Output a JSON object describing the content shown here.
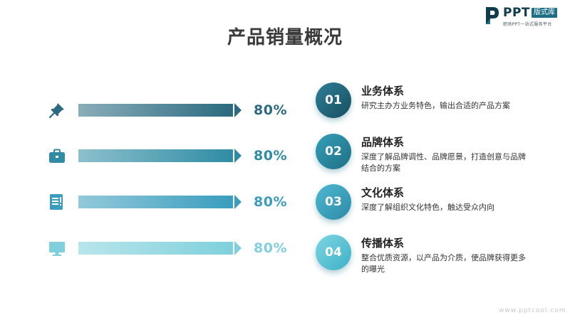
{
  "logo": {
    "brand": "PPT",
    "tag": "版式库",
    "subtitle": "职场PPT一站式服务平台"
  },
  "title": "产品销量概况",
  "bars": [
    {
      "icon": "pin-icon",
      "value": 0.8,
      "label": "80%",
      "color": "#2b6a80"
    },
    {
      "icon": "briefcase-icon",
      "value": 0.8,
      "label": "80%",
      "color": "#2f8ca4"
    },
    {
      "icon": "document-icon",
      "value": 0.8,
      "label": "80%",
      "color": "#3a9dbd"
    },
    {
      "icon": "monitor-icon",
      "value": 0.8,
      "label": "80%",
      "color": "#7fd0dc"
    }
  ],
  "items": [
    {
      "number": "01",
      "title": "业务体系",
      "desc": "研究主办方业务特色，输出合适的产品方案"
    },
    {
      "number": "02",
      "title": "品牌体系",
      "desc": "深度了解品牌调性、品牌愿景，打造创意与品牌结合的方案"
    },
    {
      "number": "03",
      "title": "文化体系",
      "desc": "深度了解组织文化特色，触达受众内向"
    },
    {
      "number": "04",
      "title": "传播体系",
      "desc": "整合优质资源，以产品为介质，使品牌获得更多的曝光"
    }
  ],
  "footer": "www.pptcool.com"
}
